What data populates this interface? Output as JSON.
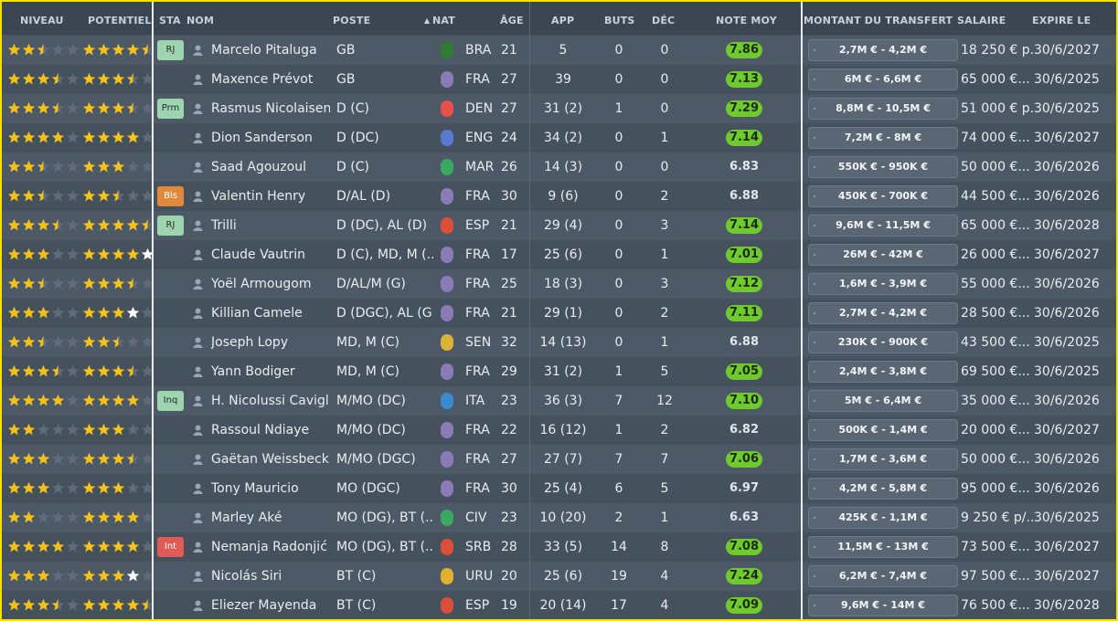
{
  "headers": {
    "niveau": "NIVEAU",
    "potentiel": "POTENTIEL",
    "sta": "STA",
    "nom": "NOM",
    "poste": "POSTE",
    "sort_indicator": "▲",
    "nat": "NAT",
    "age": "ÂGE",
    "app": "APP",
    "buts": "BUTS",
    "dec": "DÉC",
    "note_moy": "NOTE MOY",
    "montant": "MONTANT DU TRANSFERT",
    "salaire": "SALAIRE",
    "expire": "EXPIRE LE"
  },
  "colors": {
    "star_gold": "#f2c21b",
    "star_empty": "#5f6b78",
    "star_white": "#ffffff",
    "rating_green": "#6fc92f",
    "sta_rj": "#9fd4b0",
    "sta_prm": "#9fd4b0",
    "sta_bls": "#e0893a",
    "sta_inq": "#9fd4b0",
    "sta_int": "#e05a56"
  },
  "players": [
    {
      "niveau": 2.5,
      "potentiel": 4.5,
      "potentiel_white": 0,
      "sta": "RJ",
      "sta_color": "#9fd4b0",
      "nom": "Marcelo Pitaluga",
      "poste": "GB",
      "nat": "BRA",
      "flag": "#2e7d32",
      "age": "21",
      "app": "5",
      "buts": "0",
      "dec": "0",
      "note": "7.86",
      "note_green": true,
      "montant": "2,7M € - 4,2M €",
      "salaire": "18 250 € p...",
      "expire": "30/6/2027"
    },
    {
      "niveau": 3.5,
      "potentiel": 3.5,
      "potentiel_white": 0,
      "sta": "",
      "sta_color": "",
      "nom": "Maxence Prévot",
      "poste": "GB",
      "nat": "FRA",
      "flag": "#8a7ab8",
      "age": "27",
      "app": "39",
      "buts": "0",
      "dec": "0",
      "note": "7.13",
      "note_green": true,
      "montant": "6M € - 6,6M €",
      "salaire": "65 000 €...",
      "expire": "30/6/2025"
    },
    {
      "niveau": 3.5,
      "potentiel": 3.5,
      "potentiel_white": 0,
      "sta": "Prm",
      "sta_color": "#9fd4b0",
      "nom": "Rasmus Nicolaisen",
      "poste": "D (C)",
      "nat": "DEN",
      "flag": "#e8504c",
      "age": "27",
      "app": "31 (2)",
      "buts": "1",
      "dec": "0",
      "note": "7.29",
      "note_green": true,
      "montant": "8,8M € - 10,5M €",
      "salaire": "51 000 € p...",
      "expire": "30/6/2025"
    },
    {
      "niveau": 4,
      "potentiel": 4,
      "potentiel_white": 0,
      "sta": "",
      "sta_color": "",
      "nom": "Dion Sanderson",
      "poste": "D (DC)",
      "nat": "ENG",
      "flag": "#5a7ad0",
      "age": "24",
      "app": "34 (2)",
      "buts": "0",
      "dec": "1",
      "note": "7.14",
      "note_green": true,
      "montant": "7,2M € - 8M €",
      "salaire": "74 000 €...",
      "expire": "30/6/2027"
    },
    {
      "niveau": 2.5,
      "potentiel": 3,
      "potentiel_white": 0,
      "sta": "",
      "sta_color": "",
      "nom": "Saad Agouzoul",
      "poste": "D (C)",
      "nat": "MAR",
      "flag": "#3aa860",
      "age": "26",
      "app": "14 (3)",
      "buts": "0",
      "dec": "0",
      "note": "6.83",
      "note_green": false,
      "montant": "550K € - 950K €",
      "salaire": "50 000 €...",
      "expire": "30/6/2026"
    },
    {
      "niveau": 2.5,
      "potentiel": 2.5,
      "potentiel_white": 0,
      "sta": "Bls",
      "sta_color": "#e0893a",
      "nom": "Valentin Henry",
      "poste": "D/AL (D)",
      "nat": "FRA",
      "flag": "#8a7ab8",
      "age": "30",
      "app": "9 (6)",
      "buts": "0",
      "dec": "2",
      "note": "6.88",
      "note_green": false,
      "montant": "450K € - 700K €",
      "salaire": "44 500 €...",
      "expire": "30/6/2026"
    },
    {
      "niveau": 3.5,
      "potentiel": 4.5,
      "potentiel_white": 0,
      "sta": "RJ",
      "sta_color": "#9fd4b0",
      "nom": "Trilli",
      "poste": "D (DC), AL (D)",
      "nat": "ESP",
      "flag": "#d9503a",
      "age": "21",
      "app": "29 (4)",
      "buts": "0",
      "dec": "3",
      "note": "7.14",
      "note_green": true,
      "montant": "9,6M € - 11,5M €",
      "salaire": "65 000 €...",
      "expire": "30/6/2028"
    },
    {
      "niveau": 3,
      "potentiel": 4,
      "potentiel_white": 1,
      "sta": "",
      "sta_color": "",
      "nom": "Claude Vautrin",
      "poste": "D (C), MD, M (...",
      "nat": "FRA",
      "flag": "#8a7ab8",
      "age": "17",
      "app": "25 (6)",
      "buts": "0",
      "dec": "1",
      "note": "7.01",
      "note_green": true,
      "montant": "26M € - 42M €",
      "salaire": "26 000 €...",
      "expire": "30/6/2027"
    },
    {
      "niveau": 2.5,
      "potentiel": 3.5,
      "potentiel_white": 0,
      "sta": "",
      "sta_color": "",
      "nom": "Yoël Armougom",
      "poste": "D/AL/M (G)",
      "nat": "FRA",
      "flag": "#8a7ab8",
      "age": "25",
      "app": "18 (3)",
      "buts": "0",
      "dec": "3",
      "note": "7.12",
      "note_green": true,
      "montant": "1,6M € - 3,9M €",
      "salaire": "55 000 €...",
      "expire": "30/6/2026"
    },
    {
      "niveau": 3,
      "potentiel": 3,
      "potentiel_white": 1,
      "sta": "",
      "sta_color": "",
      "nom": "Killian Camele",
      "poste": "D (DGC), AL (G)",
      "nat": "FRA",
      "flag": "#8a7ab8",
      "age": "21",
      "app": "29 (1)",
      "buts": "0",
      "dec": "2",
      "note": "7.11",
      "note_green": true,
      "montant": "2,7M € - 4,2M €",
      "salaire": "28 500 €...",
      "expire": "30/6/2026"
    },
    {
      "niveau": 2.5,
      "potentiel": 2.5,
      "potentiel_white": 0,
      "sta": "",
      "sta_color": "",
      "nom": "Joseph Lopy",
      "poste": "MD, M (C)",
      "nat": "SEN",
      "flag": "#d9b23a",
      "age": "32",
      "app": "14 (13)",
      "buts": "0",
      "dec": "1",
      "note": "6.88",
      "note_green": false,
      "montant": "230K € - 900K €",
      "salaire": "43 500 €...",
      "expire": "30/6/2025"
    },
    {
      "niveau": 3.5,
      "potentiel": 3.5,
      "potentiel_white": 0,
      "sta": "",
      "sta_color": "",
      "nom": "Yann Bodiger",
      "poste": "MD, M (C)",
      "nat": "FRA",
      "flag": "#8a7ab8",
      "age": "29",
      "app": "31 (2)",
      "buts": "1",
      "dec": "5",
      "note": "7.05",
      "note_green": true,
      "montant": "2,4M € - 3,8M €",
      "salaire": "69 500 €...",
      "expire": "30/6/2025"
    },
    {
      "niveau": 4,
      "potentiel": 4,
      "potentiel_white": 0,
      "sta": "Inq",
      "sta_color": "#9fd4b0",
      "nom": "H. Nicolussi Caviglia",
      "poste": "M/MO (DC)",
      "nat": "ITA",
      "flag": "#3a8ad0",
      "age": "23",
      "app": "36 (3)",
      "buts": "7",
      "dec": "12",
      "note": "7.10",
      "note_green": true,
      "montant": "5M € - 6,4M €",
      "salaire": "35 000 €...",
      "expire": "30/6/2026"
    },
    {
      "niveau": 2,
      "potentiel": 3,
      "potentiel_white": 0,
      "sta": "",
      "sta_color": "",
      "nom": "Rassoul Ndiaye",
      "poste": "M/MO (DC)",
      "nat": "FRA",
      "flag": "#8a7ab8",
      "age": "22",
      "app": "16 (12)",
      "buts": "1",
      "dec": "2",
      "note": "6.82",
      "note_green": false,
      "montant": "500K € - 1,4M €",
      "salaire": "20 000 €...",
      "expire": "30/6/2027"
    },
    {
      "niveau": 3,
      "potentiel": 3.5,
      "potentiel_white": 0,
      "sta": "",
      "sta_color": "",
      "nom": "Gaëtan Weissbeck",
      "poste": "M/MO (DGC)",
      "nat": "FRA",
      "flag": "#8a7ab8",
      "age": "27",
      "app": "27 (7)",
      "buts": "7",
      "dec": "7",
      "note": "7.06",
      "note_green": true,
      "montant": "1,7M € - 3,6M €",
      "salaire": "50 000 €...",
      "expire": "30/6/2026"
    },
    {
      "niveau": 3,
      "potentiel": 3,
      "potentiel_white": 0,
      "sta": "",
      "sta_color": "",
      "nom": "Tony Mauricio",
      "poste": "MO (DGC)",
      "nat": "FRA",
      "flag": "#8a7ab8",
      "age": "30",
      "app": "25 (4)",
      "buts": "6",
      "dec": "5",
      "note": "6.97",
      "note_green": false,
      "montant": "4,2M € - 5,8M €",
      "salaire": "95 000 €...",
      "expire": "30/6/2026"
    },
    {
      "niveau": 2,
      "potentiel": 4,
      "potentiel_white": 0,
      "sta": "",
      "sta_color": "",
      "nom": "Marley Aké",
      "poste": "MO (DG), BT (...",
      "nat": "CIV",
      "flag": "#3aa860",
      "age": "23",
      "app": "10 (20)",
      "buts": "2",
      "dec": "1",
      "note": "6.63",
      "note_green": false,
      "montant": "425K € - 1,1M €",
      "salaire": "9 250 € p/...",
      "expire": "30/6/2025"
    },
    {
      "niveau": 4,
      "potentiel": 4,
      "potentiel_white": 0,
      "sta": "Int",
      "sta_color": "#e05a56",
      "nom": "Nemanja Radonjić",
      "poste": "MO (DG), BT (...",
      "nat": "SRB",
      "flag": "#d9503a",
      "age": "28",
      "app": "33 (5)",
      "buts": "14",
      "dec": "8",
      "note": "7.08",
      "note_green": true,
      "montant": "11,5M € - 13M €",
      "salaire": "73 500 €...",
      "expire": "30/6/2027"
    },
    {
      "niveau": 3,
      "potentiel": 3,
      "potentiel_white": 1,
      "sta": "",
      "sta_color": "",
      "nom": "Nicolás Siri",
      "poste": "BT (C)",
      "nat": "URU",
      "flag": "#e0b030",
      "age": "20",
      "app": "25 (6)",
      "buts": "19",
      "dec": "4",
      "note": "7.24",
      "note_green": true,
      "montant": "6,2M € - 7,4M €",
      "salaire": "97 500 €...",
      "expire": "30/6/2027"
    },
    {
      "niveau": 3.5,
      "potentiel": 4.5,
      "potentiel_white": 0,
      "sta": "",
      "sta_color": "",
      "nom": "Eliezer Mayenda",
      "poste": "BT (C)",
      "nat": "ESP",
      "flag": "#d9503a",
      "age": "19",
      "app": "20 (14)",
      "buts": "17",
      "dec": "4",
      "note": "7.09",
      "note_green": true,
      "montant": "9,6M € - 14M €",
      "salaire": "76 500 €...",
      "expire": "30/6/2028"
    }
  ]
}
